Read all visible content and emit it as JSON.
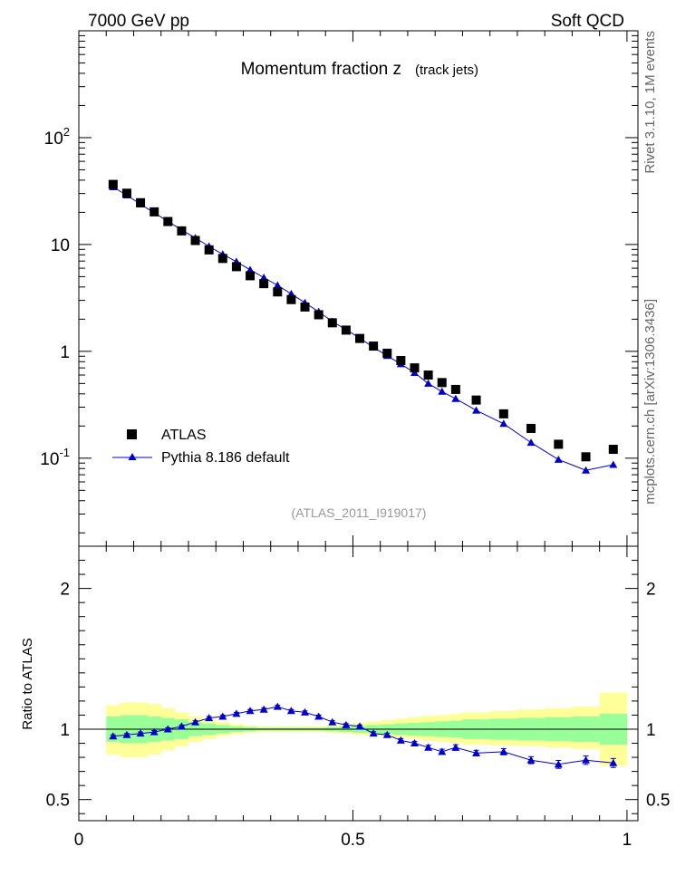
{
  "header": {
    "energy_label": "7000 GeV pp",
    "process_label": "Soft QCD",
    "title_main": "Momentum fraction z",
    "title_sub": "(track jets)",
    "side_label_top": "Rivet 3.1.10,  1M events",
    "side_label_bottom": "mcplots.cern.ch [arXiv:1306.3436]",
    "analysis_label": "(ATLAS_2011_I919017)"
  },
  "colors": {
    "data": "#000000",
    "mc": "#0000cc",
    "band_inner": "#99ff99",
    "band_outer": "#ffff99",
    "analysis_text": "#999999",
    "side_text": "#666666"
  },
  "chart_data": [
    {
      "type": "scatter",
      "panel": "main",
      "yscale": "log",
      "xlim": [
        0,
        1.02
      ],
      "ylim": [
        0.015,
        1000
      ],
      "y_tick_labels": [
        "10^-1",
        "1",
        "10",
        "10^2"
      ],
      "legend_position": "lower-left",
      "series": [
        {
          "name": "ATLAS",
          "style": "square-markers",
          "x": [
            0.0625,
            0.0875,
            0.1125,
            0.1375,
            0.1625,
            0.1875,
            0.2125,
            0.2375,
            0.2625,
            0.2875,
            0.3125,
            0.3375,
            0.3625,
            0.3875,
            0.4125,
            0.4375,
            0.4625,
            0.4875,
            0.5125,
            0.5375,
            0.5625,
            0.5875,
            0.6125,
            0.6375,
            0.6625,
            0.6875,
            0.725,
            0.775,
            0.825,
            0.875,
            0.925,
            0.975
          ],
          "y": [
            36.5,
            30.2,
            24.6,
            20.2,
            16.4,
            13.4,
            10.9,
            8.9,
            7.4,
            6.2,
            5.1,
            4.3,
            3.6,
            3.05,
            2.6,
            2.2,
            1.85,
            1.58,
            1.32,
            1.12,
            0.96,
            0.82,
            0.7,
            0.6,
            0.51,
            0.44,
            0.35,
            0.26,
            0.19,
            0.135,
            0.103,
            0.121
          ]
        },
        {
          "name": "Pythia 8.186 default",
          "style": "line-triangle-markers",
          "x": [
            0.0625,
            0.0875,
            0.1125,
            0.1375,
            0.1625,
            0.1875,
            0.2125,
            0.2375,
            0.2625,
            0.2875,
            0.3125,
            0.3375,
            0.3625,
            0.3875,
            0.4125,
            0.4375,
            0.4625,
            0.4875,
            0.5125,
            0.5375,
            0.5625,
            0.5875,
            0.6125,
            0.6375,
            0.6625,
            0.6875,
            0.725,
            0.775,
            0.825,
            0.875,
            0.925,
            0.975
          ],
          "y": [
            34.5,
            28.9,
            23.8,
            19.8,
            16.5,
            13.7,
            11.5,
            9.6,
            8.1,
            6.9,
            5.8,
            4.9,
            4.15,
            3.45,
            2.85,
            2.35,
            1.9,
            1.6,
            1.33,
            1.09,
            0.91,
            0.76,
            0.63,
            0.5,
            0.42,
            0.36,
            0.28,
            0.21,
            0.14,
            0.097,
            0.077,
            0.087
          ]
        }
      ]
    },
    {
      "type": "line",
      "panel": "ratio",
      "ylabel": "Ratio to ATLAS",
      "xlim": [
        0,
        1.02
      ],
      "ylim": [
        0.35,
        2.3
      ],
      "x_tick_labels": [
        "0",
        "0.5",
        "1"
      ],
      "y_tick_labels": [
        "0.5",
        "1",
        "2"
      ],
      "bands": {
        "bin_edges": [
          0.05,
          0.075,
          0.1,
          0.125,
          0.15,
          0.175,
          0.2,
          0.225,
          0.25,
          0.275,
          0.3,
          0.325,
          0.35,
          0.375,
          0.4,
          0.425,
          0.45,
          0.475,
          0.5,
          0.525,
          0.55,
          0.575,
          0.6,
          0.625,
          0.65,
          0.675,
          0.7,
          0.75,
          0.8,
          0.85,
          0.9,
          0.95,
          1.0
        ],
        "inner_low": [
          0.91,
          0.9,
          0.9,
          0.91,
          0.92,
          0.93,
          0.95,
          0.96,
          0.97,
          0.98,
          0.985,
          0.99,
          0.99,
          0.99,
          0.99,
          0.99,
          0.985,
          0.98,
          0.975,
          0.97,
          0.965,
          0.96,
          0.955,
          0.95,
          0.945,
          0.94,
          0.93,
          0.925,
          0.92,
          0.915,
          0.91,
          0.89
        ],
        "inner_high": [
          1.09,
          1.1,
          1.1,
          1.09,
          1.08,
          1.07,
          1.05,
          1.04,
          1.03,
          1.02,
          1.015,
          1.01,
          1.01,
          1.01,
          1.01,
          1.01,
          1.015,
          1.02,
          1.025,
          1.03,
          1.035,
          1.04,
          1.045,
          1.05,
          1.055,
          1.06,
          1.07,
          1.075,
          1.08,
          1.085,
          1.09,
          1.11
        ],
        "outer_low": [
          0.82,
          0.8,
          0.8,
          0.82,
          0.85,
          0.88,
          0.91,
          0.93,
          0.95,
          0.965,
          0.975,
          0.98,
          0.98,
          0.98,
          0.98,
          0.98,
          0.975,
          0.97,
          0.96,
          0.955,
          0.945,
          0.94,
          0.93,
          0.92,
          0.91,
          0.9,
          0.89,
          0.885,
          0.88,
          0.87,
          0.86,
          0.74
        ],
        "outer_high": [
          1.17,
          1.19,
          1.19,
          1.18,
          1.15,
          1.12,
          1.09,
          1.07,
          1.05,
          1.035,
          1.025,
          1.02,
          1.02,
          1.02,
          1.02,
          1.02,
          1.025,
          1.035,
          1.045,
          1.055,
          1.065,
          1.075,
          1.085,
          1.095,
          1.1,
          1.11,
          1.12,
          1.13,
          1.14,
          1.15,
          1.16,
          1.26
        ]
      },
      "reference_y": 1,
      "series": [
        {
          "name": "Pythia 8.186 default",
          "x": [
            0.0625,
            0.0875,
            0.1125,
            0.1375,
            0.1625,
            0.1875,
            0.2125,
            0.2375,
            0.2625,
            0.2875,
            0.3125,
            0.3375,
            0.3625,
            0.3875,
            0.4125,
            0.4375,
            0.4625,
            0.4875,
            0.5125,
            0.5375,
            0.5625,
            0.5875,
            0.6125,
            0.6375,
            0.6625,
            0.6875,
            0.725,
            0.775,
            0.825,
            0.875,
            0.925,
            0.975
          ],
          "y": [
            0.95,
            0.96,
            0.97,
            0.98,
            1.0,
            1.02,
            1.05,
            1.08,
            1.09,
            1.11,
            1.13,
            1.14,
            1.16,
            1.13,
            1.12,
            1.09,
            1.05,
            1.03,
            1.02,
            0.97,
            0.96,
            0.92,
            0.9,
            0.87,
            0.84,
            0.87,
            0.83,
            0.84,
            0.78,
            0.75,
            0.78,
            0.76
          ],
          "err": [
            0.01,
            0.01,
            0.01,
            0.01,
            0.01,
            0.01,
            0.01,
            0.01,
            0.01,
            0.01,
            0.01,
            0.01,
            0.01,
            0.01,
            0.01,
            0.01,
            0.01,
            0.01,
            0.01,
            0.012,
            0.012,
            0.013,
            0.014,
            0.016,
            0.018,
            0.02,
            0.02,
            0.022,
            0.025,
            0.028,
            0.03,
            0.032
          ]
        }
      ]
    }
  ]
}
